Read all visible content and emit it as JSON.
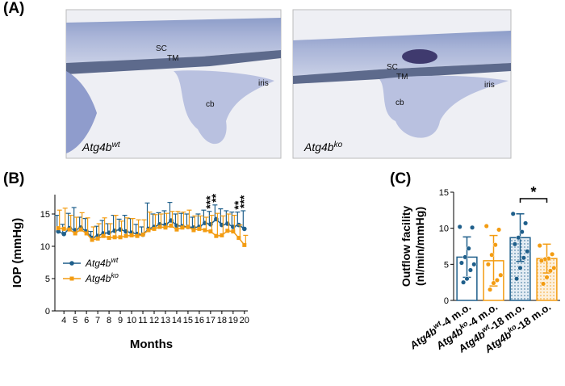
{
  "panels": {
    "a": "(A)",
    "b": "(B)",
    "c": "(C)"
  },
  "micrographs": [
    {
      "labels": [
        "SC",
        "TM",
        "iris",
        "cb"
      ],
      "genotype": "Atg4b",
      "superscript": "wt"
    },
    {
      "labels": [
        "SC",
        "TM",
        "iris",
        "cb"
      ],
      "genotype": "Atg4b",
      "superscript": "ko"
    }
  ],
  "chart_data": [
    {
      "type": "line",
      "x_label": "Months",
      "y_label": "IOP (mmHg)",
      "x": [
        3.5,
        4,
        4.5,
        5,
        5.5,
        6,
        6.5,
        7,
        7.5,
        8,
        8.5,
        9,
        9.5,
        10,
        10.5,
        11,
        11.5,
        12,
        12.5,
        13,
        13.5,
        14,
        14.5,
        15,
        15.5,
        16,
        16.5,
        17,
        17.5,
        18,
        18.5,
        19,
        19.5,
        20
      ],
      "series": [
        {
          "name": "Atg4b",
          "superscript": "wt",
          "color": "#1f5f8b",
          "marker": "circle",
          "values": [
            12.3,
            11.9,
            12.8,
            12.5,
            12.9,
            12.3,
            11.3,
            11.6,
            12.0,
            12.1,
            12.4,
            12.6,
            12.3,
            12.1,
            11.9,
            11.8,
            12.7,
            13.0,
            13.4,
            13.3,
            14.0,
            13.2,
            13.1,
            13.0,
            12.9,
            13.0,
            13.6,
            13.4,
            14.2,
            13.3,
            13.5,
            13.0,
            13.3,
            12.7
          ],
          "errors": [
            2.5,
            1.5,
            2.3,
            3.5,
            1.6,
            2.0,
            1.0,
            1.5,
            2.0,
            1.4,
            2.4,
            1.6,
            2.5,
            2.2,
            1.5,
            1.2,
            4.0,
            2.0,
            1.8,
            2.2,
            2.8,
            1.8,
            2.0,
            2.0,
            1.6,
            2.0,
            2.0,
            2.0,
            2.2,
            2.5,
            2.0,
            2.3,
            2.0,
            2.8
          ]
        },
        {
          "name": "Atg4b",
          "superscript": "ko",
          "color": "#f39c12",
          "marker": "square",
          "values": [
            12.8,
            12.7,
            12.6,
            12.0,
            12.6,
            12.0,
            11.0,
            11.2,
            11.6,
            11.3,
            11.4,
            11.4,
            11.6,
            11.7,
            11.6,
            11.8,
            12.5,
            12.7,
            13.0,
            12.9,
            13.2,
            12.6,
            12.9,
            13.0,
            12.5,
            12.7,
            12.5,
            12.3,
            11.6,
            11.7,
            12.4,
            12.3,
            11.3,
            10.2
          ],
          "errors": [
            2.8,
            3.2,
            2.2,
            2.5,
            2.6,
            2.4,
            2.0,
            2.3,
            2.8,
            2.2,
            3.4,
            2.5,
            2.8,
            2.6,
            2.5,
            2.3,
            2.8,
            2.2,
            2.0,
            2.2,
            2.2,
            2.8,
            2.4,
            2.6,
            2.2,
            2.0,
            2.0,
            2.5,
            3.5,
            3.0,
            2.6,
            2.5,
            2.0,
            1.5
          ]
        }
      ],
      "xlim": [
        3.2,
        20.3
      ],
      "xticks": [
        4,
        5,
        6,
        7,
        8,
        9,
        10,
        11,
        12,
        13,
        14,
        15,
        16,
        17,
        18,
        19,
        20
      ],
      "ylim": [
        0,
        18
      ],
      "yticks": [
        0,
        5,
        10,
        15
      ],
      "annotations": [
        {
          "x": 17,
          "text": "***"
        },
        {
          "x": 17.5,
          "text": "**"
        },
        {
          "x": 19.5,
          "text": "**"
        },
        {
          "x": 20,
          "text": "***"
        }
      ]
    },
    {
      "type": "bar",
      "y_label": [
        "Outflow facility",
        "(nl/min/mmHg)"
      ],
      "categories": [
        {
          "base": "Atg4b",
          "sup": "wt",
          "suffix": "-4 m.o."
        },
        {
          "base": "Atg4b",
          "sup": "ko",
          "suffix": "-4 m.o."
        },
        {
          "base": "Atg4b",
          "sup": "wt",
          "suffix": "-18 m.o."
        },
        {
          "base": "Atg4b",
          "sup": "ko",
          "suffix": "-18 m.o."
        }
      ],
      "values": [
        6.0,
        5.5,
        8.7,
        5.8
      ],
      "errors": [
        2.8,
        3.5,
        3.3,
        2.0
      ],
      "points": [
        [
          10.2,
          10.1,
          7.2,
          6.0,
          5.2,
          5.0,
          4.2,
          3.0,
          2.5
        ],
        [
          10.3,
          9.8,
          7.7,
          6.3,
          5.0,
          3.5,
          2.8,
          2.4,
          1.5
        ],
        [
          12.0,
          10.7,
          9.5,
          8.7,
          7.8,
          6.8,
          5.9,
          4.5,
          3.0
        ],
        [
          7.6,
          6.4,
          5.8,
          5.7,
          5.5,
          4.5,
          4.1,
          3.2,
          2.3
        ]
      ],
      "colors": [
        "#1f5f8b",
        "#f39c12",
        "#1f5f8b",
        "#f39c12"
      ],
      "dotted": [
        false,
        false,
        true,
        true
      ],
      "ylim": [
        0,
        15
      ],
      "yticks": [
        0,
        5,
        10,
        15
      ],
      "significance": {
        "between": [
          2,
          3
        ],
        "text": "*"
      }
    }
  ]
}
